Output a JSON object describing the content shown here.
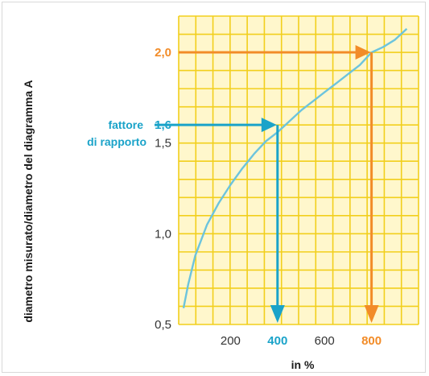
{
  "chart_data": {
    "type": "line",
    "title": "",
    "xlabel": "in %",
    "ylabel": "diametro misurato/diametro del diagramma A",
    "x_ticks": [
      {
        "value": 200,
        "label": "200",
        "color": "#333333"
      },
      {
        "value": 400,
        "label": "400",
        "color": "#1aa3c9"
      },
      {
        "value": 600,
        "label": "600",
        "color": "#333333"
      },
      {
        "value": 800,
        "label": "800",
        "color": "#f28c28"
      }
    ],
    "y_ticks": [
      {
        "value": 0.5,
        "label": "0,5",
        "color": "#333333"
      },
      {
        "value": 1.0,
        "label": "1,0",
        "color": "#333333"
      },
      {
        "value": 1.5,
        "label": "1,5",
        "color": "#333333"
      },
      {
        "value": 1.6,
        "label": "1,6",
        "color": "#1aa3c9"
      },
      {
        "value": 2.0,
        "label": "2,0",
        "color": "#f28c28"
      }
    ],
    "xlim": [
      0,
      1000
    ],
    "ylim": [
      0.5,
      2.2
    ],
    "grid": true,
    "series": [
      {
        "color": "#6cc4dd",
        "x": [
          0,
          20,
          50,
          100,
          150,
          200,
          250,
          300,
          350,
          400,
          450,
          500,
          550,
          600,
          650,
          700,
          750,
          800,
          850,
          900,
          950
        ],
        "y": [
          0.59,
          0.72,
          0.88,
          1.05,
          1.17,
          1.27,
          1.36,
          1.44,
          1.51,
          1.56,
          1.62,
          1.68,
          1.73,
          1.78,
          1.83,
          1.88,
          1.93,
          2.0,
          2.03,
          2.07,
          2.13
        ]
      }
    ],
    "annotations": [
      {
        "text_lines": [
          "fattore",
          "di rapporto"
        ],
        "x": 400,
        "y": 1.6,
        "color": "#1aa3c9"
      },
      {
        "text_lines": [],
        "x": 800,
        "y": 2.0,
        "color": "#f28c28"
      }
    ]
  }
}
